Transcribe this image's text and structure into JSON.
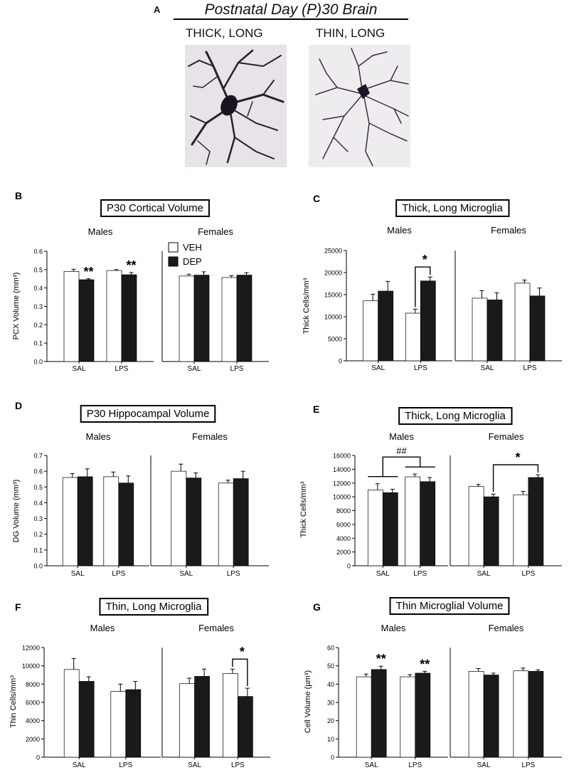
{
  "panel_a": {
    "letter": "A",
    "title": "Postnatal Day (P)30 Brain",
    "images": [
      {
        "caption": "THICK, LONG"
      },
      {
        "caption": "THIN, LONG"
      }
    ]
  },
  "legend": {
    "veh": "VEH",
    "dep": "DEP"
  },
  "colors": {
    "veh": "#ffffff",
    "dep": "#1a1a1a",
    "axis": "#000000"
  },
  "chart_data": [
    {
      "panel": "B",
      "type": "bar",
      "title": "P30 Cortical Volume",
      "ylabel": "PCX Volume (mm³)",
      "ylim": [
        0,
        0.6
      ],
      "yticks": [
        "0.0",
        "0.1",
        "0.2",
        "0.3",
        "0.4",
        "0.5",
        "0.6"
      ],
      "categories": [
        "SAL",
        "LPS"
      ],
      "groups": [
        {
          "name": "Males",
          "series": [
            {
              "name": "VEH",
              "values": [
                0.49,
                0.495
              ],
              "errors": [
                0.012,
                0.005
              ]
            },
            {
              "name": "DEP",
              "values": [
                0.445,
                0.472
              ],
              "errors": [
                0.005,
                0.012
              ]
            }
          ],
          "annotations": [
            {
              "text": "**",
              "category": 0,
              "series": 1
            },
            {
              "text": "**",
              "category": 1,
              "series": 1
            }
          ]
        },
        {
          "name": "Females",
          "series": [
            {
              "name": "VEH",
              "values": [
                0.465,
                0.457
              ],
              "errors": [
                0.01,
                0.01
              ]
            },
            {
              "name": "DEP",
              "values": [
                0.47,
                0.47
              ],
              "errors": [
                0.018,
                0.013
              ]
            }
          ],
          "annotations": []
        }
      ]
    },
    {
      "panel": "C",
      "type": "bar",
      "title": "Thick, Long Microglia",
      "ylabel": "Thick Cells/mm³",
      "ylim": [
        0,
        25000
      ],
      "yticks": [
        "0",
        "5000",
        "10000",
        "15000",
        "20000",
        "25000"
      ],
      "categories": [
        "SAL",
        "LPS"
      ],
      "groups": [
        {
          "name": "Males",
          "series": [
            {
              "name": "VEH",
              "values": [
                13600,
                10800
              ],
              "errors": [
                1500,
                900
              ]
            },
            {
              "name": "DEP",
              "values": [
                15800,
                18100
              ],
              "errors": [
                2200,
                900
              ]
            }
          ],
          "annotations": [
            {
              "text": "*",
              "bracket": [
                [
                  1,
                  0
                ],
                [
                  1,
                  1
                ]
              ]
            }
          ]
        },
        {
          "name": "Females",
          "series": [
            {
              "name": "VEH",
              "values": [
                14200,
                17600
              ],
              "errors": [
                1700,
                700
              ]
            },
            {
              "name": "DEP",
              "values": [
                13800,
                14700
              ],
              "errors": [
                1600,
                1800
              ]
            }
          ],
          "annotations": []
        }
      ]
    },
    {
      "panel": "D",
      "type": "bar",
      "title": "P30 Hippocampal  Volume",
      "ylabel": "DG Volume (mm³)",
      "ylim": [
        0,
        0.7
      ],
      "yticks": [
        "0.0",
        "0.1",
        "0.2",
        "0.3",
        "0.4",
        "0.5",
        "0.6",
        "0.7"
      ],
      "categories": [
        "SAL",
        "LPS"
      ],
      "groups": [
        {
          "name": "Males",
          "series": [
            {
              "name": "VEH",
              "values": [
                0.56,
                0.565
              ],
              "errors": [
                0.025,
                0.03
              ]
            },
            {
              "name": "DEP",
              "values": [
                0.565,
                0.525
              ],
              "errors": [
                0.05,
                0.045
              ]
            }
          ],
          "annotations": []
        },
        {
          "name": "Females",
          "series": [
            {
              "name": "VEH",
              "values": [
                0.6,
                0.525
              ],
              "errors": [
                0.045,
                0.018
              ]
            },
            {
              "name": "DEP",
              "values": [
                0.557,
                0.553
              ],
              "errors": [
                0.032,
                0.047
              ]
            }
          ],
          "annotations": []
        }
      ]
    },
    {
      "panel": "E",
      "type": "bar",
      "title": "Thick, Long Microglia",
      "ylabel": "Thick Cells/mm³",
      "ylim": [
        0,
        16000
      ],
      "yticks": [
        "0",
        "2000",
        "4000",
        "6000",
        "8000",
        "10000",
        "12000",
        "14000",
        "16000"
      ],
      "categories": [
        "SAL",
        "LPS"
      ],
      "groups": [
        {
          "name": "Males",
          "series": [
            {
              "name": "VEH",
              "values": [
                11000,
                12900
              ],
              "errors": [
                900,
                400
              ]
            },
            {
              "name": "DEP",
              "values": [
                10600,
                12200
              ],
              "errors": [
                500,
                600
              ]
            }
          ],
          "annotations": [
            {
              "text": "##",
              "groupBracket": true
            }
          ]
        },
        {
          "name": "Females",
          "series": [
            {
              "name": "VEH",
              "values": [
                11500,
                10300
              ],
              "errors": [
                300,
                500
              ]
            },
            {
              "name": "DEP",
              "values": [
                10000,
                12800
              ],
              "errors": [
                400,
                400
              ]
            }
          ],
          "annotations": [
            {
              "text": "*",
              "bracket": [
                [
                  0,
                  1
                ],
                [
                  1,
                  1
                ]
              ]
            }
          ]
        }
      ]
    },
    {
      "panel": "F",
      "type": "bar",
      "title": "Thin, Long Microglia",
      "ylabel": "Thin Cells/mm³",
      "ylim": [
        0,
        12000
      ],
      "yticks": [
        "0",
        "2000",
        "4000",
        "6000",
        "8000",
        "10000",
        "12000"
      ],
      "categories": [
        "SAL",
        "LPS"
      ],
      "groups": [
        {
          "name": "Males",
          "series": [
            {
              "name": "VEH",
              "values": [
                9600,
                7200
              ],
              "errors": [
                1200,
                800
              ]
            },
            {
              "name": "DEP",
              "values": [
                8300,
                7400
              ],
              "errors": [
                500,
                900
              ]
            }
          ],
          "annotations": []
        },
        {
          "name": "Females",
          "series": [
            {
              "name": "VEH",
              "values": [
                8050,
                9150
              ],
              "errors": [
                600,
                500
              ]
            },
            {
              "name": "DEP",
              "values": [
                8850,
                6650
              ],
              "errors": [
                800,
                900
              ]
            }
          ],
          "annotations": [
            {
              "text": "*",
              "bracket": [
                [
                  1,
                  0
                ],
                [
                  1,
                  1
                ]
              ]
            }
          ]
        }
      ]
    },
    {
      "panel": "G",
      "type": "bar",
      "title": "Thin Microglial Volume",
      "ylabel": "Cell Volume (µm³)",
      "ylim": [
        0,
        60
      ],
      "yticks": [
        "0",
        "10",
        "20",
        "30",
        "40",
        "50",
        "60"
      ],
      "categories": [
        "SAL",
        "LPS"
      ],
      "groups": [
        {
          "name": "Males",
          "series": [
            {
              "name": "VEH",
              "values": [
                44,
                44
              ],
              "errors": [
                1.5,
                1.2
              ]
            },
            {
              "name": "DEP",
              "values": [
                48,
                46
              ],
              "errors": [
                1.8,
                1
              ]
            }
          ],
          "annotations": [
            {
              "text": "**",
              "category": 0,
              "series": 1
            },
            {
              "text": "**",
              "category": 1,
              "series": 1
            }
          ]
        },
        {
          "name": "Females",
          "series": [
            {
              "name": "VEH",
              "values": [
                47,
                47.3
              ],
              "errors": [
                1.5,
                1.5
              ]
            },
            {
              "name": "DEP",
              "values": [
                45,
                47
              ],
              "errors": [
                1,
                0.8
              ]
            }
          ],
          "annotations": []
        }
      ]
    }
  ]
}
